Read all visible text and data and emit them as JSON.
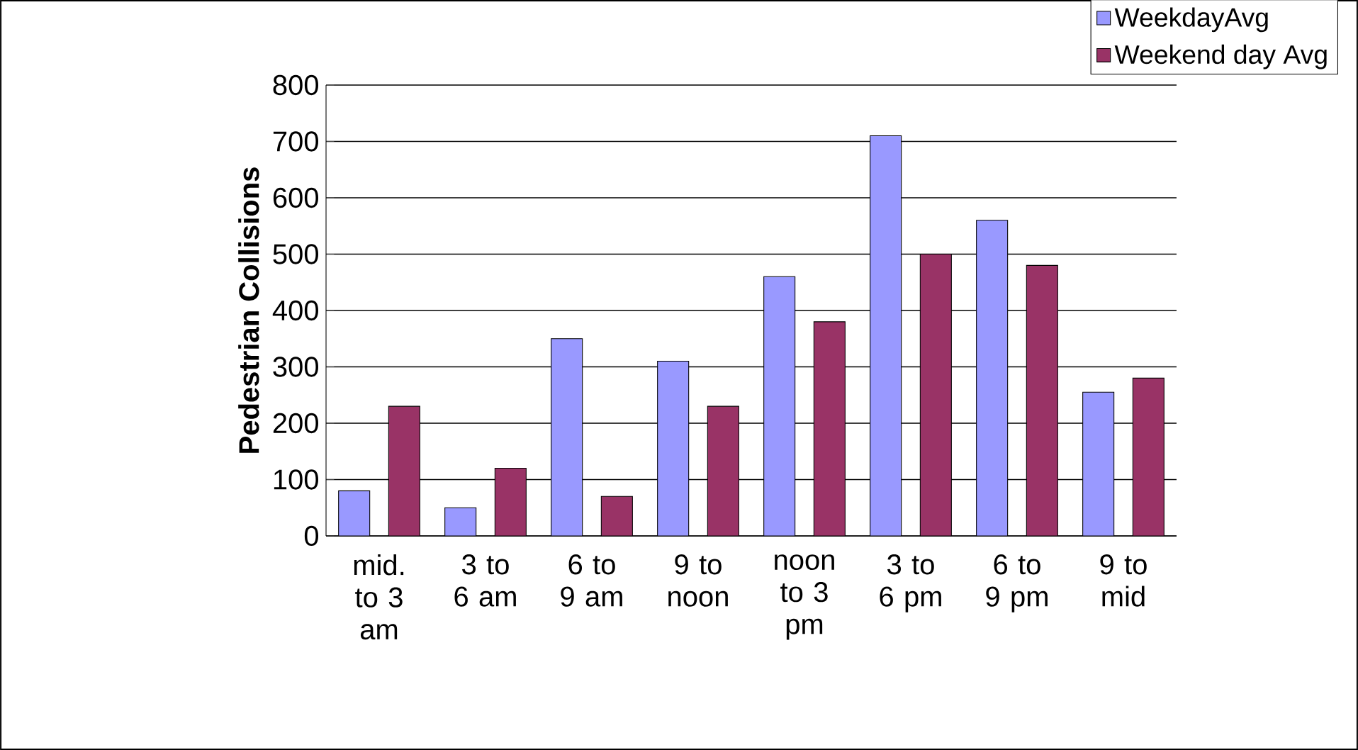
{
  "chart_data": {
    "type": "bar",
    "ylabel": "Pedestrian Collisions",
    "categories": [
      "mid. to 3 am",
      "3 to 6 am",
      "6 to 9 am",
      "9 to noon",
      "noon to 3 pm",
      "3 to 6 pm",
      "6 to 9 pm",
      "9 to mid"
    ],
    "series": [
      {
        "name": "WeekdayAvg",
        "color": "#9999ff",
        "values": [
          80,
          50,
          350,
          310,
          460,
          710,
          560,
          255
        ]
      },
      {
        "name": "Weekend day Avg",
        "color": "#993366",
        "values": [
          230,
          120,
          70,
          230,
          380,
          500,
          480,
          280
        ]
      }
    ],
    "ylim": [
      0,
      800
    ],
    "yticks": [
      0,
      100,
      200,
      300,
      400,
      500,
      600,
      700,
      800
    ],
    "grid": "y",
    "legend": "top right"
  }
}
